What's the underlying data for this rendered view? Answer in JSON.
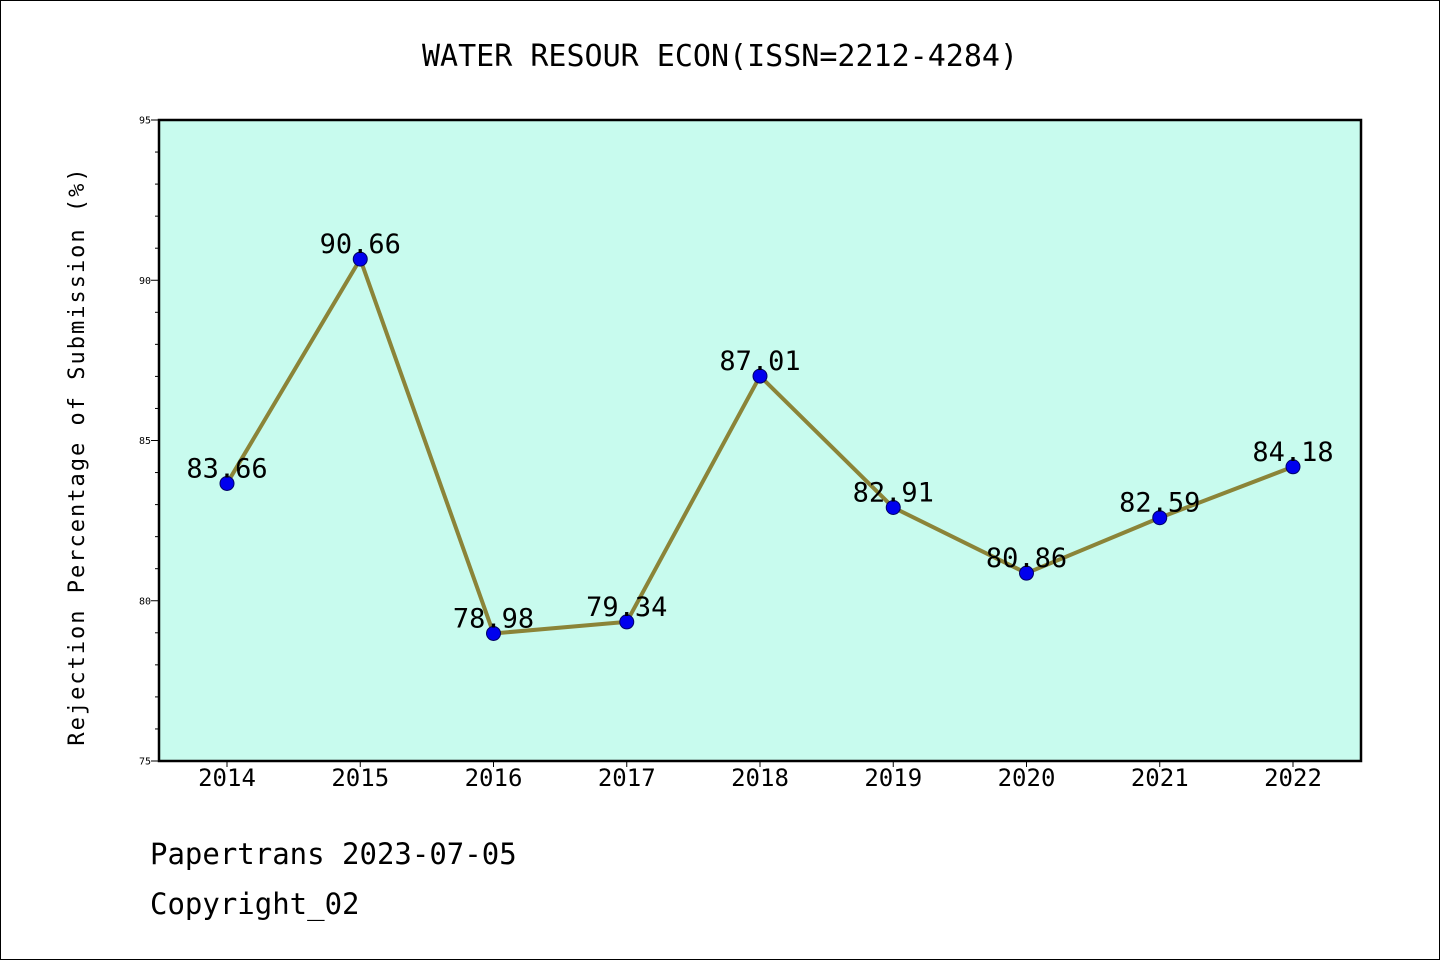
{
  "chart_data": {
    "type": "line",
    "title": "WATER RESOUR ECON(ISSN=2212-4284)",
    "xlabel": "",
    "ylabel": "Rejection Percentage of Submission (%)",
    "categories": [
      "2014",
      "2015",
      "2016",
      "2017",
      "2018",
      "2019",
      "2020",
      "2021",
      "2022"
    ],
    "series": [
      {
        "values": [
          83.66,
          90.66,
          78.98,
          79.34,
          87.01,
          82.91,
          80.86,
          82.59,
          84.18
        ]
      }
    ],
    "data_labels": [
      "83.66",
      "90.66",
      "78.98",
      "79.34",
      "87.01",
      "82.91",
      "80.86",
      "82.59",
      "84.18"
    ],
    "yticks": [
      "75",
      "80",
      "85",
      "90",
      "95"
    ],
    "ylim": [
      75,
      95
    ],
    "grid": false,
    "colors": {
      "plot_background": "#c8fbee",
      "line": "#8b8438",
      "marker": "#0000ee"
    }
  },
  "footer": {
    "line1": "Papertrans 2023-07-05",
    "line2": "Copyright_02"
  }
}
